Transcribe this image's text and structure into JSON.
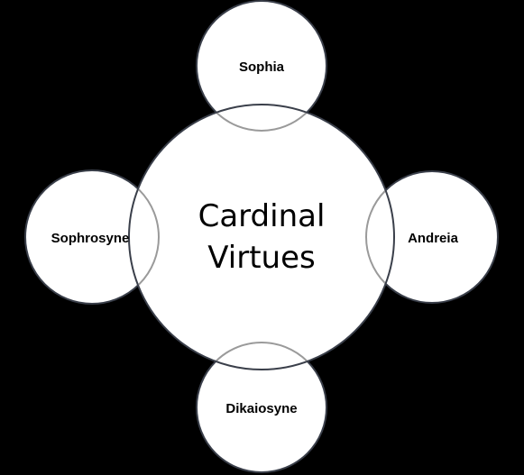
{
  "diagram": {
    "center": {
      "line1": "Cardinal",
      "line2": "Virtues"
    },
    "nodes": {
      "top": "Sophia",
      "left": "Sophrosyne",
      "right": "Andreia",
      "bottom": "Dikaiosyne"
    }
  },
  "colors": {
    "background": "#000000",
    "fill": "#ffffff",
    "outline": "#3a3f4a",
    "overlap_outline": "#9a9a9a"
  }
}
